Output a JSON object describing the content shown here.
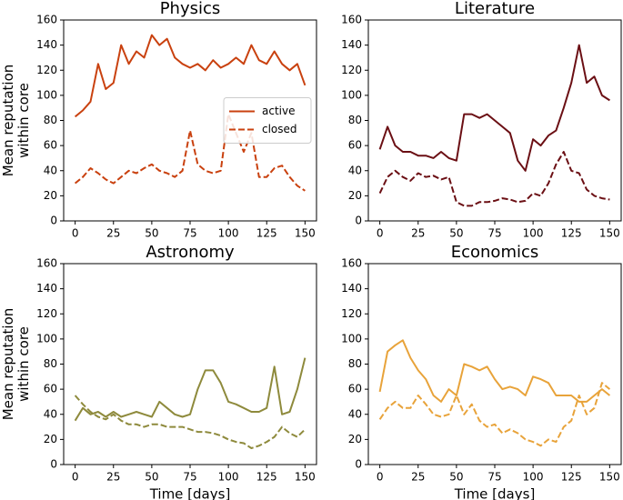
{
  "chart_data": [
    {
      "type": "line",
      "title": "Physics",
      "ylabel": [
        "Mean reputation",
        "within core"
      ],
      "legend": "center right",
      "xlim": [
        -7.5,
        157.5
      ],
      "ylim": [
        0,
        160
      ],
      "xticks": [
        0,
        25,
        50,
        75,
        100,
        125,
        150
      ],
      "yticks": [
        0,
        20,
        40,
        60,
        80,
        100,
        120,
        140,
        160
      ],
      "x": [
        0,
        5,
        10,
        15,
        20,
        25,
        30,
        35,
        40,
        45,
        50,
        55,
        60,
        65,
        70,
        75,
        80,
        85,
        90,
        95,
        100,
        105,
        110,
        115,
        120,
        125,
        130,
        135,
        140,
        145,
        150
      ],
      "series": [
        {
          "name": "active",
          "color": "#c9410f",
          "dash": false,
          "values": [
            83,
            88,
            95,
            125,
            105,
            110,
            140,
            125,
            135,
            130,
            148,
            140,
            145,
            130,
            125,
            122,
            125,
            120,
            128,
            122,
            125,
            130,
            125,
            140,
            128,
            125,
            135,
            125,
            120,
            125,
            108
          ]
        },
        {
          "name": "closed",
          "color": "#c9410f",
          "dash": true,
          "values": [
            30,
            35,
            42,
            38,
            33,
            30,
            35,
            40,
            38,
            42,
            45,
            40,
            38,
            35,
            40,
            72,
            45,
            40,
            38,
            40,
            85,
            70,
            55,
            70,
            35,
            35,
            42,
            44,
            35,
            28,
            24
          ]
        }
      ]
    },
    {
      "type": "line",
      "title": "Literature",
      "xlim": [
        -7.5,
        157.5
      ],
      "ylim": [
        0,
        160
      ],
      "xticks": [
        0,
        25,
        50,
        75,
        100,
        125,
        150
      ],
      "yticks": [
        0,
        20,
        40,
        60,
        80,
        100,
        120,
        140,
        160
      ],
      "x": [
        0,
        5,
        10,
        15,
        20,
        25,
        30,
        35,
        40,
        45,
        50,
        55,
        60,
        65,
        70,
        75,
        80,
        85,
        90,
        95,
        100,
        105,
        110,
        115,
        120,
        125,
        130,
        135,
        140,
        145,
        150
      ],
      "series": [
        {
          "color": "#6b0f14",
          "dash": false,
          "values": [
            57,
            75,
            60,
            55,
            55,
            52,
            52,
            50,
            55,
            50,
            48,
            85,
            85,
            82,
            85,
            80,
            75,
            70,
            48,
            40,
            65,
            60,
            68,
            72,
            90,
            110,
            140,
            110,
            115,
            100,
            96
          ]
        },
        {
          "color": "#6b0f14",
          "dash": true,
          "values": [
            22,
            35,
            40,
            35,
            32,
            38,
            35,
            36,
            33,
            35,
            15,
            12,
            12,
            15,
            15,
            16,
            18,
            17,
            15,
            16,
            22,
            20,
            30,
            45,
            55,
            40,
            38,
            25,
            20,
            18,
            17
          ]
        }
      ]
    },
    {
      "type": "line",
      "title": "Astronomy",
      "ylabel": [
        "Mean reputation",
        "within core"
      ],
      "xlabel": "Time [days]",
      "xlim": [
        -7.5,
        157.5
      ],
      "ylim": [
        0,
        160
      ],
      "xticks": [
        0,
        25,
        50,
        75,
        100,
        125,
        150
      ],
      "yticks": [
        0,
        20,
        40,
        60,
        80,
        100,
        120,
        140,
        160
      ],
      "x": [
        0,
        5,
        10,
        15,
        20,
        25,
        30,
        35,
        40,
        45,
        50,
        55,
        60,
        65,
        70,
        75,
        80,
        85,
        90,
        95,
        100,
        105,
        110,
        115,
        120,
        125,
        130,
        135,
        140,
        145,
        150
      ],
      "series": [
        {
          "color": "#8e8a3c",
          "dash": false,
          "values": [
            35,
            45,
            40,
            42,
            38,
            42,
            38,
            40,
            42,
            40,
            38,
            50,
            45,
            40,
            38,
            40,
            60,
            75,
            75,
            65,
            50,
            48,
            45,
            42,
            42,
            45,
            78,
            40,
            42,
            60,
            85
          ]
        },
        {
          "color": "#8e8a3c",
          "dash": true,
          "values": [
            55,
            48,
            42,
            38,
            36,
            40,
            35,
            32,
            32,
            30,
            32,
            32,
            30,
            30,
            30,
            28,
            26,
            26,
            25,
            23,
            20,
            18,
            17,
            13,
            15,
            18,
            22,
            30,
            25,
            22,
            28
          ]
        }
      ]
    },
    {
      "type": "line",
      "title": "Economics",
      "xlabel": "Time [days]",
      "xlim": [
        -7.5,
        157.5
      ],
      "ylim": [
        0,
        160
      ],
      "xticks": [
        0,
        25,
        50,
        75,
        100,
        125,
        150
      ],
      "yticks": [
        0,
        20,
        40,
        60,
        80,
        100,
        120,
        140,
        160
      ],
      "x": [
        0,
        5,
        10,
        15,
        20,
        25,
        30,
        35,
        40,
        45,
        50,
        55,
        60,
        65,
        70,
        75,
        80,
        85,
        90,
        95,
        100,
        105,
        110,
        115,
        120,
        125,
        130,
        135,
        140,
        145,
        150
      ],
      "series": [
        {
          "color": "#e8a33a",
          "dash": false,
          "values": [
            58,
            90,
            95,
            99,
            85,
            75,
            68,
            55,
            50,
            60,
            55,
            80,
            78,
            75,
            78,
            68,
            60,
            62,
            60,
            55,
            70,
            68,
            65,
            55,
            55,
            55,
            50,
            50,
            55,
            60,
            55
          ]
        },
        {
          "color": "#e8a33a",
          "dash": true,
          "values": [
            36,
            45,
            50,
            45,
            45,
            55,
            48,
            40,
            38,
            40,
            55,
            40,
            48,
            35,
            30,
            32,
            25,
            28,
            25,
            20,
            18,
            15,
            20,
            18,
            30,
            35,
            55,
            40,
            45,
            65,
            60
          ]
        }
      ]
    }
  ]
}
